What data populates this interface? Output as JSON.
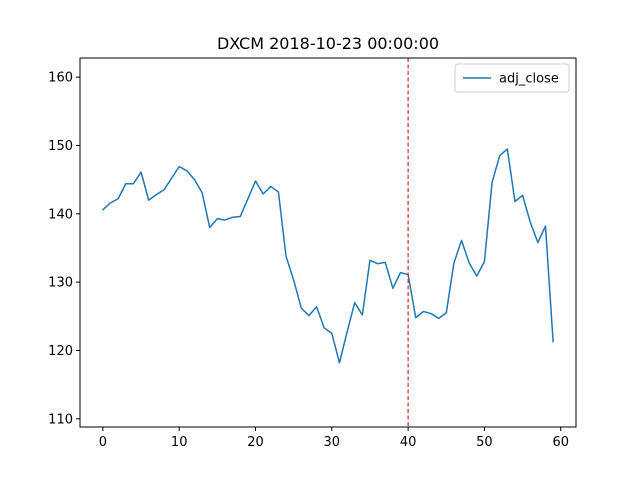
{
  "chart_data": {
    "type": "line",
    "title": "DXCM 2018-10-23 00:00:00",
    "xlabel": "",
    "ylabel": "",
    "xlim": [
      -3,
      62
    ],
    "ylim": [
      108.8,
      162.8
    ],
    "xticks": [
      0,
      10,
      20,
      30,
      40,
      50,
      60
    ],
    "yticks": [
      110,
      120,
      130,
      140,
      150,
      160
    ],
    "grid": false,
    "legend_position": "upper right",
    "vline": {
      "x": 40,
      "color": "#d62728",
      "style": "dashed"
    },
    "series": [
      {
        "name": "adj_close",
        "color": "#1f77b4",
        "x": [
          0,
          1,
          2,
          3,
          4,
          5,
          6,
          7,
          8,
          9,
          10,
          11,
          12,
          13,
          14,
          15,
          16,
          17,
          18,
          19,
          20,
          21,
          22,
          23,
          24,
          25,
          26,
          27,
          28,
          29,
          30,
          31,
          32,
          33,
          34,
          35,
          36,
          37,
          38,
          39,
          40,
          41,
          42,
          43,
          44,
          45,
          46,
          47,
          48,
          49,
          50,
          51,
          52,
          53,
          54,
          55,
          56,
          57,
          58,
          59
        ],
        "values": [
          140.6,
          141.6,
          142.2,
          144.4,
          144.4,
          146.1,
          142.0,
          142.8,
          143.5,
          145.2,
          146.9,
          146.3,
          145.0,
          143.1,
          138.0,
          139.3,
          139.1,
          139.5,
          139.6,
          142.2,
          144.8,
          142.9,
          144.0,
          143.2,
          133.8,
          130.3,
          126.2,
          125.1,
          126.4,
          123.3,
          122.5,
          118.2,
          122.7,
          127.0,
          125.2,
          133.2,
          132.7,
          132.9,
          129.1,
          131.4,
          131.1,
          124.8,
          125.7,
          125.4,
          124.7,
          125.5,
          132.8,
          136.1,
          132.8,
          130.9,
          133.0,
          144.6,
          148.5,
          149.5,
          141.8,
          142.7,
          138.8,
          135.8,
          138.2,
          121.3
        ]
      }
    ]
  }
}
